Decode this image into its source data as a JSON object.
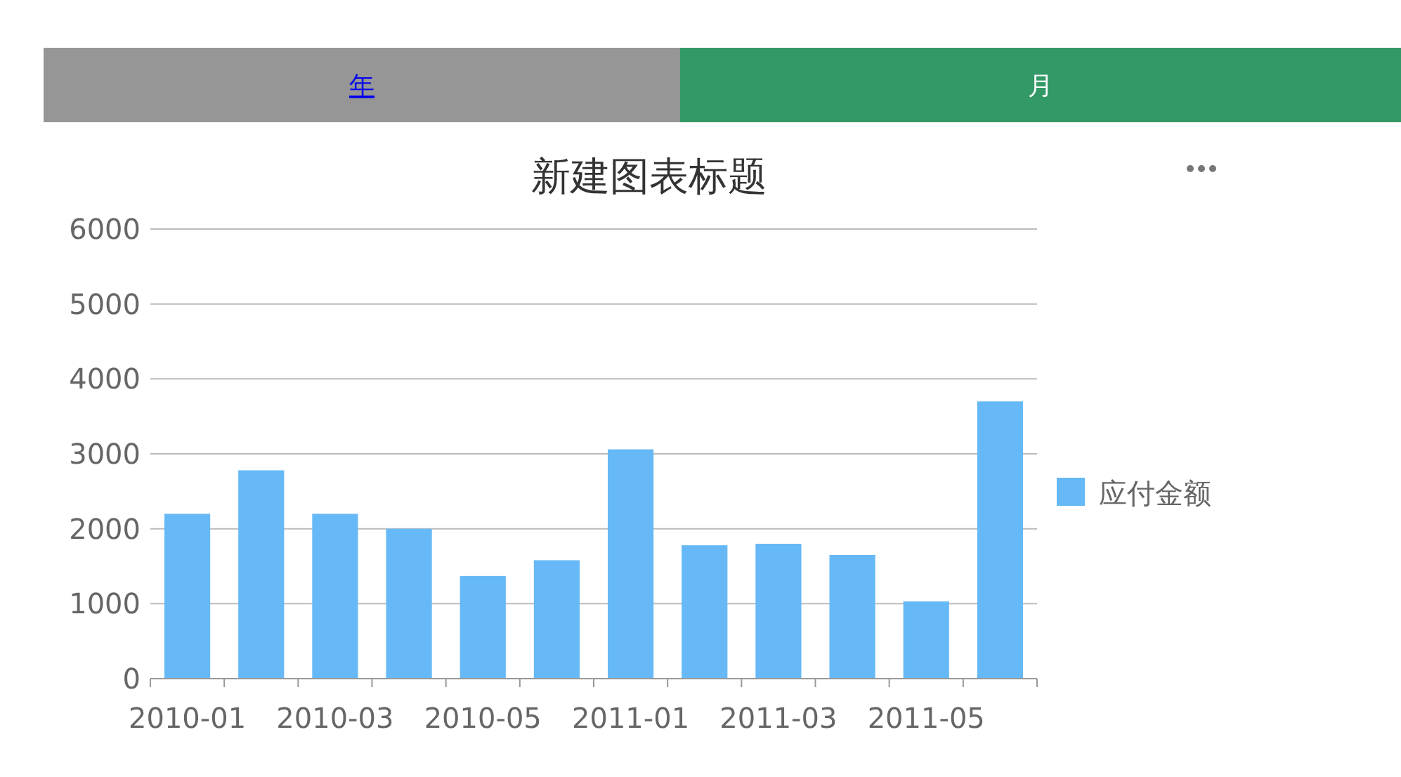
{
  "chart_data": {
    "type": "bar",
    "title": "新建图表标题",
    "categories": [
      "2010-01",
      null,
      "2010-03",
      null,
      "2010-05",
      null,
      "2011-01",
      null,
      "2011-03",
      null,
      "2011-05",
      null
    ],
    "series": [
      {
        "name": "应付金额",
        "color": "#66b9f6",
        "values": [
          2200,
          2780,
          2200,
          2000,
          1370,
          1580,
          3060,
          1780,
          1800,
          1650,
          1030,
          3700
        ]
      }
    ],
    "ylim": [
      0,
      6000
    ],
    "yticks": [
      0,
      1000,
      2000,
      3000,
      4000,
      5000,
      6000
    ],
    "grid": "y",
    "legend": "right",
    "annotations": [
      "年",
      "月"
    ]
  }
}
